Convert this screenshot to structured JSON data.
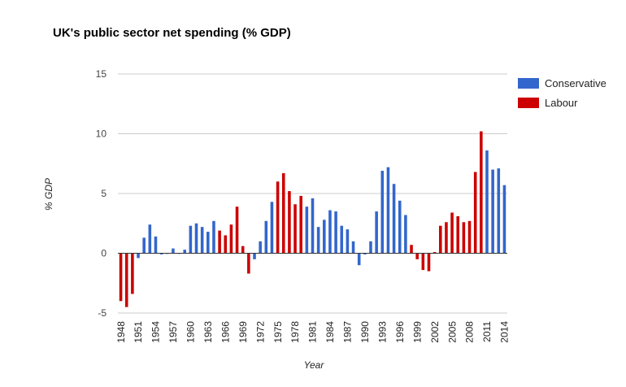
{
  "chart_data": {
    "type": "bar",
    "title": "UK's public sector net spending (% GDP)",
    "xlabel": "Year",
    "ylabel": "% GDP",
    "ylim": [
      -5,
      15
    ],
    "yticks": [
      -5,
      0,
      5,
      10,
      15
    ],
    "grid": true,
    "legend_position": "right",
    "colors": {
      "Conservative": "#3366cc",
      "Labour": "#cc0000"
    },
    "legend": [
      {
        "name": "Conservative",
        "color": "#3366cc"
      },
      {
        "name": "Labour",
        "color": "#cc0000"
      }
    ],
    "x_tick_labels": [
      "1948",
      "1951",
      "1954",
      "1957",
      "1960",
      "1963",
      "1966",
      "1969",
      "1972",
      "1975",
      "1978",
      "1981",
      "1984",
      "1987",
      "1990",
      "1993",
      "1996",
      "1999",
      "2002",
      "2005",
      "2008",
      "2011",
      "2014"
    ],
    "years": [
      1948,
      1949,
      1950,
      1951,
      1952,
      1953,
      1954,
      1955,
      1956,
      1957,
      1958,
      1959,
      1960,
      1961,
      1962,
      1963,
      1964,
      1965,
      1966,
      1967,
      1968,
      1969,
      1970,
      1971,
      1972,
      1973,
      1974,
      1975,
      1976,
      1977,
      1978,
      1979,
      1980,
      1981,
      1982,
      1983,
      1984,
      1985,
      1986,
      1987,
      1988,
      1989,
      1990,
      1991,
      1992,
      1993,
      1994,
      1995,
      1996,
      1997,
      1998,
      1999,
      2000,
      2001,
      2002,
      2003,
      2004,
      2005,
      2006,
      2007,
      2008,
      2009,
      2010,
      2011,
      2012,
      2013,
      2014
    ],
    "values": [
      -4.0,
      -4.5,
      -3.4,
      -0.4,
      1.3,
      2.4,
      1.4,
      -0.1,
      0.0,
      0.4,
      0.0,
      0.3,
      2.3,
      2.5,
      2.2,
      1.8,
      2.7,
      1.9,
      1.5,
      2.4,
      3.9,
      0.6,
      -1.7,
      -0.5,
      1.0,
      2.7,
      4.3,
      6.0,
      6.7,
      5.2,
      4.1,
      4.8,
      3.9,
      4.6,
      2.2,
      2.8,
      3.6,
      3.5,
      2.3,
      2.0,
      1.0,
      -1.0,
      -0.1,
      1.0,
      3.5,
      6.9,
      7.2,
      5.8,
      4.4,
      3.2,
      0.7,
      -0.5,
      -1.4,
      -1.5,
      0.1,
      2.3,
      2.6,
      3.4,
      3.1,
      2.6,
      2.7,
      6.8,
      10.2,
      8.6,
      7.0,
      7.1,
      5.7
    ],
    "parties": [
      "Labour",
      "Labour",
      "Labour",
      "Conservative",
      "Conservative",
      "Conservative",
      "Conservative",
      "Conservative",
      "Conservative",
      "Conservative",
      "Conservative",
      "Conservative",
      "Conservative",
      "Conservative",
      "Conservative",
      "Conservative",
      "Conservative",
      "Labour",
      "Labour",
      "Labour",
      "Labour",
      "Labour",
      "Labour",
      "Conservative",
      "Conservative",
      "Conservative",
      "Conservative",
      "Labour",
      "Labour",
      "Labour",
      "Labour",
      "Labour",
      "Conservative",
      "Conservative",
      "Conservative",
      "Conservative",
      "Conservative",
      "Conservative",
      "Conservative",
      "Conservative",
      "Conservative",
      "Conservative",
      "Conservative",
      "Conservative",
      "Conservative",
      "Conservative",
      "Conservative",
      "Conservative",
      "Conservative",
      "Conservative",
      "Labour",
      "Labour",
      "Labour",
      "Labour",
      "Labour",
      "Labour",
      "Labour",
      "Labour",
      "Labour",
      "Labour",
      "Labour",
      "Labour",
      "Labour",
      "Conservative",
      "Conservative",
      "Conservative",
      "Conservative"
    ]
  }
}
